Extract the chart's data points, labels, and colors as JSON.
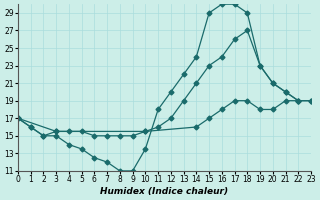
{
  "xlabel": "Humidex (Indice chaleur)",
  "bg_color": "#cceee8",
  "line_color": "#1a6b6b",
  "marker": "D",
  "markersize": 2.5,
  "linewidth": 0.9,
  "series": [
    {
      "x": [
        0,
        1,
        2,
        3,
        4,
        5,
        6,
        7,
        8,
        9,
        10,
        11,
        12,
        13,
        14,
        15,
        16,
        17,
        18,
        19,
        20,
        21,
        22
      ],
      "y": [
        17,
        16,
        15,
        15,
        14,
        13.5,
        12.5,
        12,
        11,
        11,
        13.5,
        18,
        20,
        22,
        24,
        29,
        30,
        30,
        29,
        23,
        21,
        20,
        19
      ]
    },
    {
      "x": [
        0,
        1,
        2,
        3,
        4,
        5,
        6,
        7,
        8,
        9,
        10,
        11,
        12,
        13,
        14,
        15,
        16,
        17,
        18,
        19,
        20,
        21,
        22,
        23
      ],
      "y": [
        17,
        16,
        15,
        15.5,
        15.5,
        15.5,
        15,
        15,
        15,
        15,
        15.5,
        16,
        17,
        19,
        21,
        23,
        24,
        26,
        27,
        23,
        21,
        20,
        19,
        19
      ]
    },
    {
      "x": [
        0,
        3,
        10,
        14,
        15,
        16,
        17,
        18,
        19,
        20,
        21,
        22,
        23
      ],
      "y": [
        17,
        15.5,
        15.5,
        16,
        17,
        18,
        19,
        19,
        18,
        18,
        19,
        19,
        19
      ]
    }
  ],
  "xlim": [
    0,
    23
  ],
  "ylim": [
    11,
    30
  ],
  "yticks": [
    11,
    13,
    15,
    17,
    19,
    21,
    23,
    25,
    27,
    29
  ],
  "xticks": [
    0,
    1,
    2,
    3,
    4,
    5,
    6,
    7,
    8,
    9,
    10,
    11,
    12,
    13,
    14,
    15,
    16,
    17,
    18,
    19,
    20,
    21,
    22,
    23
  ],
  "grid_color": "#aadddd",
  "tick_fontsize": 5.5,
  "label_fontsize": 6.5
}
